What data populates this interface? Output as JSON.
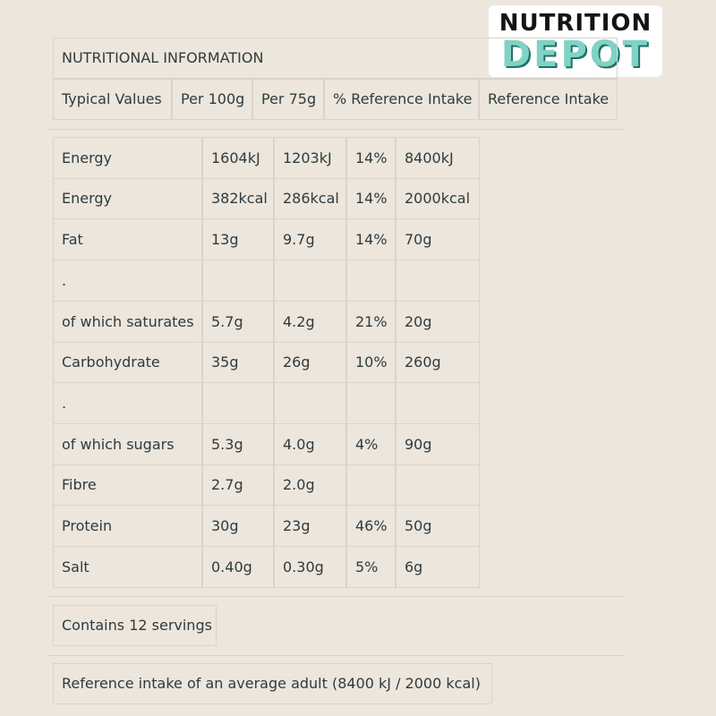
{
  "logo": {
    "line1": "NUTRITION",
    "line2": "DEPOT"
  },
  "header": {
    "title": "NUTRITIONAL INFORMATION",
    "columns": [
      "Typical Values",
      "Per 100g",
      "Per 75g",
      "% Reference Intake",
      "Reference Intake"
    ]
  },
  "rows": [
    [
      "Energy",
      "1604kJ",
      "1203kJ",
      "14%",
      "8400kJ"
    ],
    [
      "Energy",
      "382kcal",
      "286kcal",
      "14%",
      "2000kcal"
    ],
    [
      "Fat",
      "13g",
      "9.7g",
      "14%",
      "70g"
    ],
    [
      ".",
      "",
      "",
      "",
      ""
    ],
    [
      "of which saturates",
      "5.7g",
      "4.2g",
      "21%",
      "20g"
    ],
    [
      "Carbohydrate",
      "35g",
      "26g",
      "10%",
      "260g"
    ],
    [
      ".",
      "",
      "",
      "",
      ""
    ],
    [
      "of which sugars",
      "5.3g",
      "4.0g",
      "4%",
      "90g"
    ],
    [
      "Fibre",
      "2.7g",
      "2.0g",
      "",
      ""
    ],
    [
      "Protein",
      "30g",
      "23g",
      "46%",
      "50g"
    ],
    [
      "Salt",
      "0.40g",
      "0.30g",
      "5%",
      "6g"
    ]
  ],
  "servings": "Contains 12 servings",
  "reference_note": "Reference intake of an average adult (8400 kJ / 2000 kcal)"
}
